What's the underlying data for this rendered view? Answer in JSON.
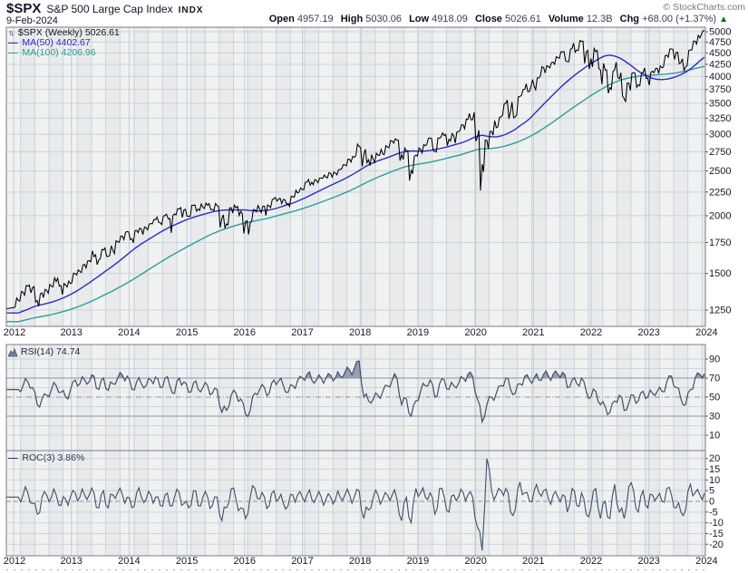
{
  "header": {
    "symbol": "$SPX",
    "name": "S&P 500 Large Cap Index",
    "exchange": "INDX",
    "date": "9-Feb-2024",
    "copyright": "© StockCharts.com",
    "quote": {
      "open_label": "Open",
      "open": "4957.19",
      "high_label": "High",
      "high": "5030.06",
      "low_label": "Low",
      "low": "4918.09",
      "close_label": "Close",
      "close": "5026.61",
      "volume_label": "Volume",
      "volume": "12.3B",
      "chg_label": "Chg",
      "chg": "+68.00 (+1.37%)",
      "chg_direction": "up",
      "chg_arrow": "▲"
    },
    "colors": {
      "up_green": "#067006",
      "text": "#15152a",
      "muted": "#787886"
    }
  },
  "chart_data": [
    {
      "type": "bar",
      "panel": "price",
      "title": "$SPX (Weekly) 5026.61",
      "legend": [
        {
          "label": "$SPX (Weekly) 5026.61",
          "color": "#15151e",
          "icon": "updown-arrows",
          "icon_glyph": "↑↓"
        },
        {
          "label": "MA(50) 4402.67",
          "color": "#2b2bcd",
          "icon": "dash",
          "icon_glyph": "—"
        },
        {
          "label": "MA(100) 4206.96",
          "color": "#2e9e9b",
          "icon": "dash",
          "icon_glyph": "—"
        }
      ],
      "x_ticks": [
        2012,
        2013,
        2014,
        2015,
        2016,
        2017,
        2018,
        2019,
        2020,
        2021,
        2022,
        2023,
        2024
      ],
      "y_scale": "log",
      "y_ticks": [
        5000,
        4750,
        4500,
        4250,
        4000,
        3750,
        3500,
        3250,
        3000,
        2750,
        2500,
        2250,
        2000,
        1750,
        1500,
        1250
      ],
      "months_start": "Jan-2012",
      "months_end": "Feb-2024",
      "series": [
        {
          "name": "SPX weekly bars (monthly OHLC samples)",
          "type": "bars",
          "color": "#000000",
          "prev_close": 1258,
          "low": [
            1262,
            1301,
            1340,
            1357,
            1291,
            1267,
            1325,
            1354,
            1396,
            1403,
            1343,
            1398,
            1426,
            1485,
            1501,
            1536,
            1581,
            1560,
            1604,
            1627,
            1633,
            1646,
            1746,
            1768,
            1770,
            1738,
            1834,
            1814,
            1859,
            1915,
            1930,
            1905,
            1964,
            1821,
            2001,
            1972,
            1988,
            1981,
            2040,
            2048,
            2067,
            2056,
            2044,
            1867,
            1872,
            1894,
            2019,
            1993,
            1812,
            1810,
            1937,
            2033,
            2026,
            1992,
            2074,
            2147,
            2119,
            2114,
            2084,
            2187,
            2245,
            2267,
            2322,
            2329,
            2352,
            2405,
            2408,
            2417,
            2446,
            2520,
            2557,
            2606,
            2682,
            2533,
            2586,
            2554,
            2595,
            2692,
            2698,
            2796,
            2864,
            2604,
            2631,
            2347,
            2444,
            2682,
            2722,
            2848,
            2751,
            2729,
            2952,
            2822,
            2892,
            2856,
            3051,
            3070,
            3214,
            2856,
            2192,
            2448,
            2767,
            2966,
            3101,
            3284,
            3209,
            3234,
            3279,
            3633,
            3694,
            3789,
            3724,
            3993,
            4057,
            4165,
            4234,
            4368,
            4306,
            4279,
            4495,
            4531,
            4223,
            4115,
            4158,
            4125,
            3811,
            3637,
            3722,
            3954,
            3585,
            3492,
            3699,
            3764,
            3794,
            3943,
            3809,
            4069,
            4049,
            4172,
            4385,
            4336,
            4239,
            4104,
            4198,
            4546,
            4683,
            4918
          ],
          "high": [
            1333,
            1378,
            1419,
            1422,
            1415,
            1363,
            1391,
            1426,
            1474,
            1470,
            1434,
            1448,
            1509,
            1530,
            1570,
            1602,
            1687,
            1654,
            1698,
            1709,
            1730,
            1775,
            1813,
            1849,
            1851,
            1867,
            1884,
            1897,
            1924,
            1968,
            1991,
            2005,
            2019,
            2018,
            2076,
            2093,
            2072,
            2120,
            2117,
            2126,
            2135,
            2130,
            2133,
            2113,
            2021,
            2095,
            2116,
            2104,
            2038,
            1963,
            2072,
            2111,
            2103,
            2121,
            2177,
            2194,
            2188,
            2170,
            2214,
            2278,
            2301,
            2371,
            2401,
            2399,
            2418,
            2454,
            2485,
            2491,
            2519,
            2583,
            2658,
            2695,
            2873,
            2836,
            2802,
            2717,
            2742,
            2791,
            2848,
            2916,
            2941,
            2940,
            2815,
            2800,
            2708,
            2813,
            2860,
            2949,
            2954,
            2964,
            3028,
            3014,
            3022,
            3050,
            3154,
            3248,
            3338,
            3393,
            3137,
            2955,
            3068,
            3233,
            3280,
            3514,
            3588,
            3550,
            3645,
            3760,
            3870,
            3950,
            3994,
            4218,
            4238,
            4302,
            4430,
            4537,
            4546,
            4608,
            4744,
            4809,
            4819,
            4595,
            4637,
            4593,
            4308,
            4178,
            4140,
            4325,
            4119,
            3906,
            4100,
            4101,
            4094,
            4195,
            4110,
            4170,
            4232,
            4458,
            4607,
            4600,
            4542,
            4393,
            4587,
            4793,
            4932,
            5030
          ],
          "close": [
            1312,
            1366,
            1408,
            1398,
            1310,
            1362,
            1379,
            1407,
            1441,
            1412,
            1416,
            1426,
            1498,
            1515,
            1569,
            1598,
            1631,
            1606,
            1686,
            1633,
            1682,
            1757,
            1806,
            1848,
            1783,
            1859,
            1872,
            1884,
            1924,
            1960,
            1931,
            2003,
            1972,
            2018,
            2068,
            2059,
            1995,
            2105,
            2068,
            2086,
            2107,
            2063,
            2104,
            1972,
            1920,
            2079,
            2080,
            2044,
            1940,
            1932,
            2060,
            2065,
            2097,
            2099,
            2174,
            2171,
            2168,
            2126,
            2199,
            2239,
            2279,
            2364,
            2363,
            2384,
            2412,
            2423,
            2470,
            2472,
            2519,
            2575,
            2648,
            2674,
            2824,
            2714,
            2641,
            2648,
            2705,
            2718,
            2816,
            2902,
            2914,
            2712,
            2760,
            2507,
            2704,
            2784,
            2834,
            2946,
            2752,
            2942,
            2980,
            2926,
            2977,
            3038,
            3141,
            3231,
            3226,
            2954,
            2585,
            2912,
            3044,
            3100,
            3271,
            3500,
            3363,
            3270,
            3622,
            3756,
            3714,
            3811,
            3973,
            4181,
            4204,
            4298,
            4395,
            4523,
            4308,
            4605,
            4567,
            4766,
            4516,
            4374,
            4530,
            4132,
            4132,
            3785,
            4130,
            3955,
            3586,
            3872,
            4080,
            3840,
            4077,
            3970,
            4109,
            4169,
            4180,
            4450,
            4589,
            4508,
            4288,
            4194,
            4568,
            4770,
            4846,
            5026.61
          ]
        },
        {
          "name": "MA(50)",
          "type": "line",
          "color": "#2b2bcd",
          "values": [
            1232,
            1243,
            1255,
            1268,
            1278,
            1285,
            1292,
            1300,
            1310,
            1322,
            1335,
            1350,
            1368,
            1388,
            1410,
            1432,
            1456,
            1480,
            1506,
            1532,
            1558,
            1586,
            1616,
            1648,
            1680,
            1710,
            1738,
            1764,
            1790,
            1816,
            1842,
            1866,
            1890,
            1910,
            1930,
            1950,
            1968,
            1984,
            1998,
            2012,
            2025,
            2038,
            2048,
            2055,
            2058,
            2058,
            2058,
            2060,
            2058,
            2052,
            2048,
            2048,
            2052,
            2058,
            2068,
            2082,
            2098,
            2114,
            2130,
            2150,
            2172,
            2196,
            2222,
            2248,
            2274,
            2300,
            2326,
            2352,
            2378,
            2406,
            2436,
            2468,
            2504,
            2542,
            2576,
            2604,
            2628,
            2650,
            2672,
            2696,
            2720,
            2742,
            2756,
            2762,
            2760,
            2758,
            2760,
            2768,
            2780,
            2792,
            2808,
            2826,
            2844,
            2862,
            2884,
            2910,
            2945,
            2972,
            2985,
            2972,
            2962,
            2962,
            2975,
            3000,
            3035,
            3075,
            3130,
            3180,
            3240,
            3320,
            3400,
            3485,
            3570,
            3655,
            3740,
            3825,
            3905,
            3985,
            4060,
            4130,
            4200,
            4265,
            4330,
            4390,
            4435,
            4450,
            4430,
            4390,
            4330,
            4260,
            4185,
            4110,
            4050,
            4000,
            3965,
            3945,
            3940,
            3948,
            3968,
            3998,
            4038,
            4088,
            4155,
            4235,
            4325,
            4402.67
          ]
        },
        {
          "name": "MA(100)",
          "type": "line",
          "color": "#2e9e9b",
          "values": [
            1180,
            1186,
            1193,
            1200,
            1206,
            1211,
            1216,
            1222,
            1229,
            1237,
            1245,
            1254,
            1264,
            1275,
            1287,
            1300,
            1314,
            1329,
            1345,
            1361,
            1377,
            1394,
            1412,
            1431,
            1451,
            1472,
            1494,
            1517,
            1540,
            1563,
            1586,
            1609,
            1632,
            1654,
            1676,
            1698,
            1720,
            1742,
            1764,
            1786,
            1807,
            1827,
            1846,
            1863,
            1878,
            1892,
            1906,
            1919,
            1930,
            1939,
            1948,
            1958,
            1968,
            1978,
            1990,
            2003,
            2016,
            2029,
            2042,
            2056,
            2071,
            2087,
            2104,
            2122,
            2140,
            2159,
            2178,
            2198,
            2219,
            2241,
            2264,
            2289,
            2316,
            2344,
            2372,
            2398,
            2423,
            2447,
            2470,
            2493,
            2516,
            2538,
            2556,
            2570,
            2580,
            2590,
            2600,
            2612,
            2625,
            2639,
            2654,
            2670,
            2686,
            2702,
            2720,
            2740,
            2762,
            2782,
            2790,
            2792,
            2796,
            2804,
            2816,
            2832,
            2852,
            2874,
            2900,
            2930,
            2964,
            3002,
            3044,
            3090,
            3140,
            3192,
            3246,
            3302,
            3358,
            3414,
            3470,
            3526,
            3582,
            3638,
            3692,
            3745,
            3796,
            3842,
            3884,
            3920,
            3950,
            3974,
            3992,
            4006,
            4016,
            4024,
            4030,
            4036,
            4042,
            4050,
            4060,
            4074,
            4092,
            4112,
            4136,
            4162,
            4186,
            4206.96
          ]
        }
      ]
    },
    {
      "type": "line",
      "panel": "rsi",
      "label": "RSI(14) 74.74",
      "color": "#3f5068",
      "fill_color": "#8c9ab1",
      "overbought": 70,
      "oversold": 30,
      "midline": 50,
      "y_ticks": [
        90,
        70,
        50,
        30,
        10
      ],
      "values": [
        58,
        62,
        66,
        60,
        42,
        48,
        52,
        58,
        62,
        55,
        50,
        57,
        68,
        64,
        68,
        66,
        72,
        58,
        70,
        57,
        64,
        70,
        73,
        72,
        58,
        66,
        64,
        62,
        68,
        71,
        60,
        70,
        62,
        54,
        70,
        66,
        55,
        65,
        58,
        60,
        62,
        54,
        58,
        34,
        36,
        52,
        54,
        48,
        32,
        36,
        54,
        58,
        60,
        54,
        68,
        67,
        62,
        55,
        62,
        67,
        70,
        74,
        68,
        68,
        70,
        70,
        73,
        70,
        72,
        76,
        78,
        80,
        88,
        50,
        46,
        48,
        52,
        56,
        62,
        68,
        70,
        42,
        48,
        30,
        46,
        56,
        62,
        68,
        50,
        64,
        68,
        58,
        62,
        64,
        70,
        74,
        72,
        48,
        24,
        42,
        50,
        54,
        62,
        70,
        58,
        54,
        64,
        72,
        68,
        70,
        68,
        74,
        72,
        74,
        74,
        76,
        60,
        68,
        64,
        70,
        56,
        50,
        56,
        42,
        40,
        34,
        46,
        52,
        36,
        44,
        52,
        46,
        56,
        50,
        54,
        56,
        56,
        66,
        72,
        60,
        48,
        42,
        58,
        70,
        74,
        74.74
      ]
    },
    {
      "type": "line",
      "panel": "roc",
      "label": "ROC(3) 3.86%",
      "color": "#3f5068",
      "zero_line": 0,
      "y_ticks": [
        20,
        15,
        10,
        5,
        0,
        -5,
        -10,
        -15,
        -20
      ],
      "values": [
        2,
        3,
        4,
        -1,
        -6,
        2,
        3,
        2,
        3,
        -2,
        1,
        2,
        4,
        2,
        3,
        3,
        4,
        -3,
        5,
        -3,
        3,
        4,
        3,
        2,
        -3,
        4,
        2,
        1,
        3,
        2,
        -2,
        3,
        -2,
        2,
        4,
        -1,
        -3,
        5,
        -2,
        2,
        2,
        -2,
        2,
        -9,
        -3,
        6,
        1,
        -3,
        -8,
        2,
        6,
        1,
        2,
        -2,
        5,
        1,
        -1,
        -2,
        3,
        3,
        2,
        3,
        1,
        2,
        2,
        1,
        2,
        1,
        2,
        3,
        3,
        2,
        5,
        -8,
        -4,
        2,
        3,
        1,
        3,
        3,
        1,
        -9,
        2,
        -10,
        6,
        4,
        2,
        4,
        -6,
        6,
        2,
        -5,
        3,
        2,
        4,
        3,
        2,
        -12,
        -23,
        20,
        5,
        3,
        5,
        6,
        -5,
        -4,
        9,
        4,
        0,
        5,
        4,
        5,
        1,
        3,
        2,
        3,
        -5,
        6,
        -2,
        4,
        -6,
        -3,
        6,
        -8,
        0,
        -8,
        8,
        -5,
        -8,
        7,
        5,
        -5,
        5,
        -3,
        3,
        2,
        0,
        6,
        3,
        -3,
        -5,
        -4,
        8,
        4,
        3,
        3.86
      ]
    }
  ]
}
